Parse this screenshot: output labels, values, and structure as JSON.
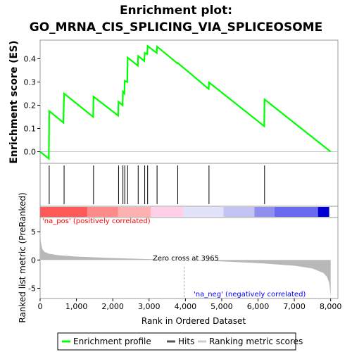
{
  "title_line1": "Enrichment plot:",
  "title_line2": "GO_MRNA_CIS_SPLICING_VIA_SPLICEOSOME",
  "colors": {
    "es_line": "#00ff00",
    "hits": "#000000",
    "metric_fill": "#b8b8b8",
    "pos_label": "#ff0000",
    "neg_label": "#0000ff",
    "zero_line": "#c0c0c0",
    "frame": "#999999"
  },
  "chart_data": [
    {
      "type": "line",
      "name": "enrichment",
      "ylabel": "Enrichment score (ES)",
      "xlim": [
        0,
        8200
      ],
      "ylim": [
        -0.05,
        0.48
      ],
      "yticks": [
        "0.0",
        "0.1",
        "0.2",
        "0.3",
        "0.4"
      ],
      "series": [
        {
          "name": "Enrichment profile",
          "x": [
            0,
            240,
            250,
            640,
            660,
            1460,
            1470,
            2150,
            2160,
            2270,
            2280,
            2320,
            2330,
            2400,
            2410,
            2690,
            2700,
            2870,
            2880,
            2950,
            2960,
            3210,
            3220,
            3780,
            3790,
            4640,
            4650,
            6170,
            6180,
            8000
          ],
          "y": [
            0.0,
            -0.03,
            0.175,
            0.125,
            0.25,
            0.15,
            0.237,
            0.155,
            0.215,
            0.2,
            0.258,
            0.25,
            0.305,
            0.3,
            0.405,
            0.37,
            0.412,
            0.39,
            0.425,
            0.42,
            0.455,
            0.425,
            0.452,
            0.38,
            0.382,
            0.27,
            0.298,
            0.11,
            0.225,
            0.0
          ]
        }
      ]
    },
    {
      "type": "hits",
      "name": "hits",
      "xlim": [
        0,
        8200
      ],
      "positions": [
        250,
        660,
        1470,
        2160,
        2280,
        2330,
        2410,
        2700,
        2880,
        2960,
        3220,
        3790,
        4650,
        6180
      ]
    },
    {
      "type": "area",
      "name": "ranked metric",
      "ylabel": "Ranked list metric (PreRanked)",
      "xlabel": "Rank in Ordered Dataset",
      "xlim": [
        0,
        8200
      ],
      "ylim": [
        -6.8,
        7.5
      ],
      "yticks": [
        "-5",
        "0",
        "5"
      ],
      "xticks": [
        "0",
        "1,000",
        "2,000",
        "3,000",
        "4,000",
        "5,000",
        "6,000",
        "7,000",
        "8,000"
      ],
      "zero_cross": 3965,
      "zero_cross_label": "Zero cross at 3965",
      "pos_label": "'na_pos' (positively correlated)",
      "neg_label": "'na_neg' (negatively correlated)",
      "x": [
        0,
        20,
        60,
        120,
        250,
        500,
        1000,
        2000,
        3000,
        3965,
        5000,
        6000,
        7000,
        7500,
        7800,
        7900,
        7960,
        8000
      ],
      "y": [
        5.0,
        3.2,
        1.9,
        1.45,
        1.1,
        0.85,
        0.6,
        0.35,
        0.15,
        0.0,
        -0.25,
        -0.55,
        -1.0,
        -1.5,
        -2.3,
        -3.0,
        -4.0,
        -6.5
      ]
    }
  ],
  "heatbar": {
    "segments": [
      {
        "end": 1300,
        "color": "#ff5a5a"
      },
      {
        "end": 2150,
        "color": "#ff8a8a"
      },
      {
        "end": 3050,
        "color": "#ffb0b0"
      },
      {
        "end": 3950,
        "color": "#ffd0e8"
      },
      {
        "end": 5050,
        "color": "#e2e2fa"
      },
      {
        "end": 5900,
        "color": "#c4c4f4"
      },
      {
        "end": 6450,
        "color": "#8f8ff0"
      },
      {
        "end": 7650,
        "color": "#6a6af0"
      },
      {
        "end": 7960,
        "color": "#0000d0"
      }
    ]
  },
  "legend": {
    "items": [
      {
        "label": "Enrichment profile",
        "icon": "green-line-icon",
        "color": "#00ff00"
      },
      {
        "label": "Hits",
        "icon": "black-line-icon",
        "color": "#555555"
      },
      {
        "label": "Ranking metric scores",
        "icon": "gray-line-icon",
        "color": "#cccccc"
      }
    ]
  }
}
